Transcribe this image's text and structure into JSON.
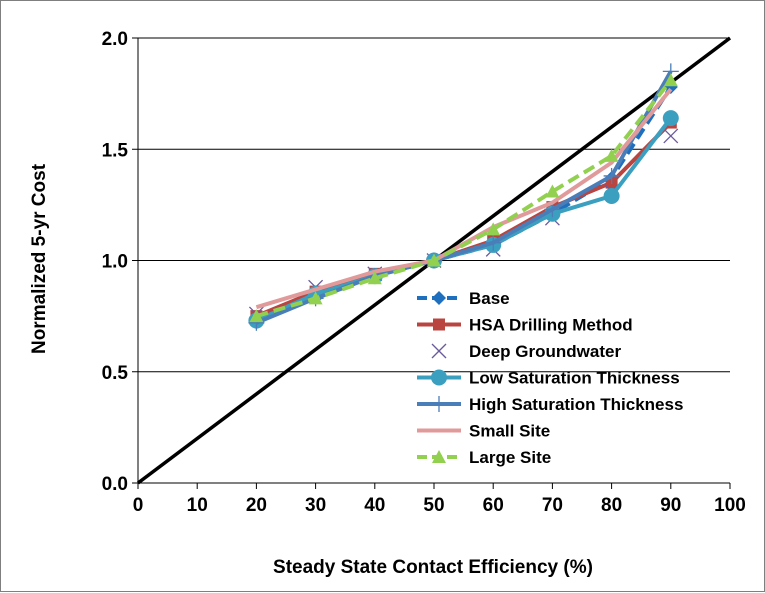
{
  "chart_data": {
    "type": "line",
    "xlabel": "Steady State Contact Efficiency (%)",
    "ylabel": "Normalized 5-yr Cost",
    "xlim": [
      0,
      100
    ],
    "ylim": [
      0,
      2.0
    ],
    "x_ticks": [
      "0",
      "10",
      "20",
      "30",
      "40",
      "50",
      "60",
      "70",
      "80",
      "90",
      "100"
    ],
    "y_ticks": [
      "0.0",
      "0.5",
      "1.0",
      "1.5",
      "2.0"
    ],
    "grid": "horizontal",
    "legend_position": "lower-right",
    "reference_line": {
      "x": [
        0,
        100
      ],
      "y": [
        0,
        2.0
      ],
      "color": "#000000"
    },
    "series": [
      {
        "name": "Base",
        "color": "#1f6fbf",
        "marker": "diamond",
        "dash": "dash",
        "x": [
          20,
          30,
          40,
          50,
          60,
          70,
          80,
          90
        ],
        "y": [
          0.73,
          0.84,
          0.93,
          1.0,
          1.07,
          1.21,
          1.37,
          1.78
        ]
      },
      {
        "name": "HSA Drilling Method",
        "color": "#b94440",
        "marker": "square",
        "dash": "solid",
        "x": [
          20,
          30,
          40,
          50,
          60,
          70,
          80,
          90
        ],
        "y": [
          0.75,
          0.86,
          0.94,
          1.0,
          1.09,
          1.24,
          1.35,
          1.62
        ]
      },
      {
        "name": "Deep Groundwater",
        "color": "#6a5a9c",
        "marker": "x",
        "dash": "none",
        "x": [
          20,
          30,
          40,
          50,
          60,
          70,
          80,
          90
        ],
        "y": [
          0.76,
          0.88,
          0.94,
          1.0,
          1.05,
          1.19,
          1.31,
          1.56
        ]
      },
      {
        "name": "Low Saturation Thickness",
        "color": "#3b9fc0",
        "marker": "circle",
        "dash": "solid",
        "x": [
          20,
          30,
          40,
          50,
          60,
          70,
          80,
          90
        ],
        "y": [
          0.73,
          0.85,
          0.93,
          1.0,
          1.07,
          1.21,
          1.29,
          1.64
        ]
      },
      {
        "name": "High Saturation Thickness",
        "color": "#4a7eb8",
        "marker": "plus",
        "dash": "solid",
        "x": [
          20,
          30,
          40,
          50,
          60,
          70,
          80,
          90
        ],
        "y": [
          0.72,
          0.83,
          0.93,
          1.0,
          1.08,
          1.23,
          1.38,
          1.85
        ]
      },
      {
        "name": "Small Site",
        "color": "#e09a9a",
        "marker": "none",
        "dash": "solid",
        "x": [
          20,
          30,
          40,
          50,
          60,
          70,
          80,
          90
        ],
        "y": [
          0.79,
          0.87,
          0.95,
          1.0,
          1.15,
          1.26,
          1.44,
          1.77
        ]
      },
      {
        "name": "Large Site",
        "color": "#92d050",
        "marker": "triangle",
        "dash": "dash",
        "x": [
          20,
          30,
          40,
          50,
          60,
          70,
          80,
          90
        ],
        "y": [
          0.75,
          0.83,
          0.92,
          1.0,
          1.14,
          1.31,
          1.47,
          1.81
        ]
      }
    ]
  }
}
